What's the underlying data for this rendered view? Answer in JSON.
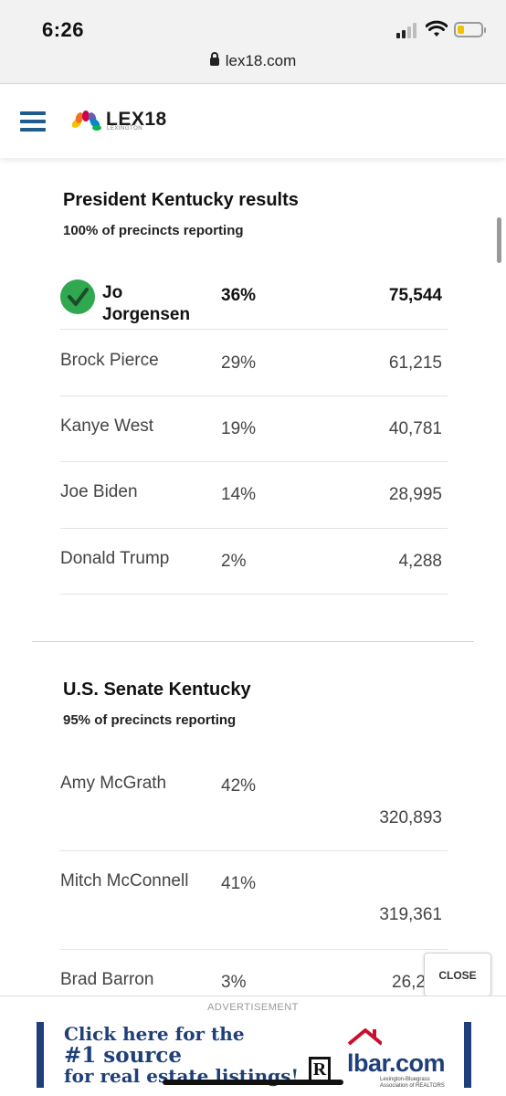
{
  "status_bar": {
    "time": "6:26",
    "url": "lex18.com"
  },
  "header": {
    "logo_text": "LEX18",
    "logo_sub": "LEXINGTON"
  },
  "president": {
    "title": "President Kentucky results",
    "reporting": "100% of precincts reporting",
    "rows": [
      {
        "name_line1": "Jo",
        "name_line2": "Jorgensen",
        "pct": "36%",
        "votes": "75,544",
        "winner": true
      },
      {
        "name": "Brock Pierce",
        "pct": "29%",
        "votes": "61,215"
      },
      {
        "name": "Kanye West",
        "pct": "19%",
        "votes": "40,781"
      },
      {
        "name": "Joe Biden",
        "pct": "14%",
        "votes": "28,995"
      },
      {
        "name": "Donald Trump",
        "pct": "2%",
        "votes": "4,288"
      }
    ]
  },
  "senate": {
    "title": "U.S. Senate Kentucky",
    "reporting": "95% of precincts reporting",
    "rows": [
      {
        "name": "Amy McGrath",
        "pct": "42%",
        "votes": "320,893"
      },
      {
        "name": "Mitch McConnell",
        "pct": "41%",
        "votes": "319,361"
      },
      {
        "name": "Brad Barron",
        "pct": "3%",
        "votes": "26,2"
      }
    ]
  },
  "close_label": "CLOSE",
  "ad": {
    "label": "ADVERTISEMENT",
    "line1": "Click here for the",
    "line2": "#1 source",
    "line3": "for real estate listings!",
    "realtor_mark": "R",
    "brand": "lbar.com",
    "brand_sub": "Lexington-Bluegrass Association of REALTORS"
  },
  "colors": {
    "accent": "#1e5b8e",
    "winner_check": "#2fa84f",
    "ad_blue": "#1f3f7a"
  }
}
